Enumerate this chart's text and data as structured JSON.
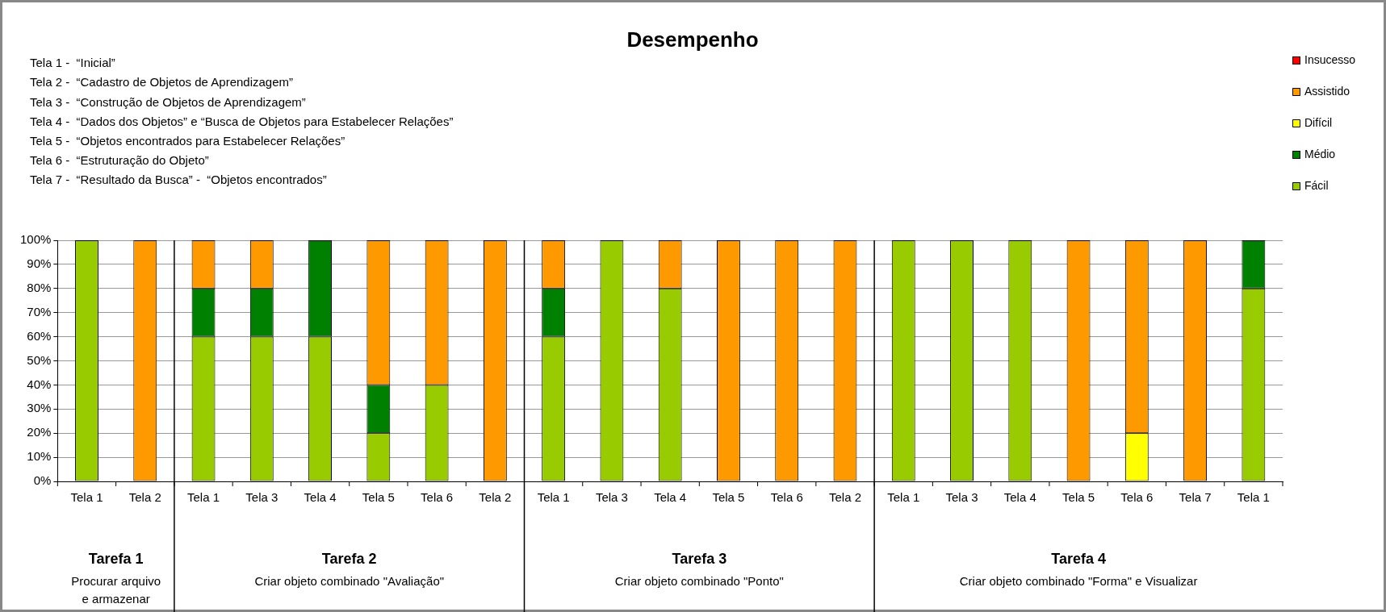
{
  "chart_data": {
    "type": "bar",
    "stacked": true,
    "title": "Desempenho",
    "categories": [
      "Tela 1",
      "Tela 2",
      "Tela 1",
      "Tela 3",
      "Tela 4",
      "Tela 5",
      "Tela 6",
      "Tela 2",
      "Tela 1",
      "Tela 3",
      "Tela 4",
      "Tela 5",
      "Tela 6",
      "Tela 2",
      "Tela 1",
      "Tela 3",
      "Tela 4",
      "Tela 5",
      "Tela 6",
      "Tela 7",
      "Tela 1"
    ],
    "series": [
      {
        "name": "Fácil",
        "color": "#99cc00",
        "values": [
          100,
          0,
          60,
          60,
          60,
          20,
          40,
          0,
          60,
          100,
          80,
          0,
          0,
          0,
          100,
          100,
          100,
          0,
          0,
          0,
          80
        ]
      },
      {
        "name": "Médio",
        "color": "#008000",
        "values": [
          0,
          0,
          20,
          20,
          40,
          20,
          0,
          0,
          20,
          0,
          0,
          0,
          0,
          0,
          0,
          0,
          0,
          0,
          0,
          0,
          20
        ]
      },
      {
        "name": "Difícil",
        "color": "#ffff00",
        "values": [
          0,
          0,
          0,
          0,
          0,
          0,
          0,
          0,
          0,
          0,
          0,
          0,
          0,
          0,
          0,
          0,
          0,
          0,
          20,
          0,
          0
        ]
      },
      {
        "name": "Assistido",
        "color": "#ff9900",
        "values": [
          0,
          100,
          20,
          20,
          0,
          60,
          60,
          100,
          20,
          0,
          20,
          100,
          100,
          100,
          0,
          0,
          0,
          100,
          80,
          100,
          0
        ]
      },
      {
        "name": "Insucesso",
        "color": "#ff0000",
        "values": [
          0,
          0,
          0,
          0,
          0,
          0,
          0,
          0,
          0,
          0,
          0,
          0,
          0,
          0,
          0,
          0,
          0,
          0,
          0,
          0,
          0
        ]
      }
    ],
    "ylim": [
      0,
      100
    ],
    "yticks": [
      {
        "value": 0,
        "label": "0%"
      },
      {
        "value": 10,
        "label": "10%"
      },
      {
        "value": 20,
        "label": "20%"
      },
      {
        "value": 30,
        "label": "30%"
      },
      {
        "value": 40,
        "label": "40%"
      },
      {
        "value": 50,
        "label": "50%"
      },
      {
        "value": 60,
        "label": "60%"
      },
      {
        "value": 70,
        "label": "70%"
      },
      {
        "value": 80,
        "label": "80%"
      },
      {
        "value": 90,
        "label": "90%"
      },
      {
        "value": 100,
        "label": "100%"
      }
    ],
    "grid": "y",
    "legend": "right",
    "annotations": [
      "Tela 1 -  “Inicial”",
      "Tela 2 -  “Cadastro de Objetos de Aprendizagem”",
      "Tela 3 -  “Construção de Objetos de Aprendizagem”",
      "Tela 4 -  “Dados dos Objetos” e “Busca de Objetos para Estabelecer Relações”",
      "Tela 5 -  “Objetos encontrados para Estabelecer Relações”",
      "Tela 6 -  “Estruturação do Objeto”",
      "Tela 7 -  “Resultado da Busca” -  “Objetos encontrados”",
      "Tarefa 1",
      "Procurar arquivo\ne armazenar",
      "Tarefa 2",
      "Criar objeto combinado \"Avaliação\"",
      "Tarefa 3",
      "Criar objeto combinado \"Ponto\"",
      "Tarefa 4",
      "Criar objeto combinado \"Forma\" e Visualizar"
    ]
  }
}
